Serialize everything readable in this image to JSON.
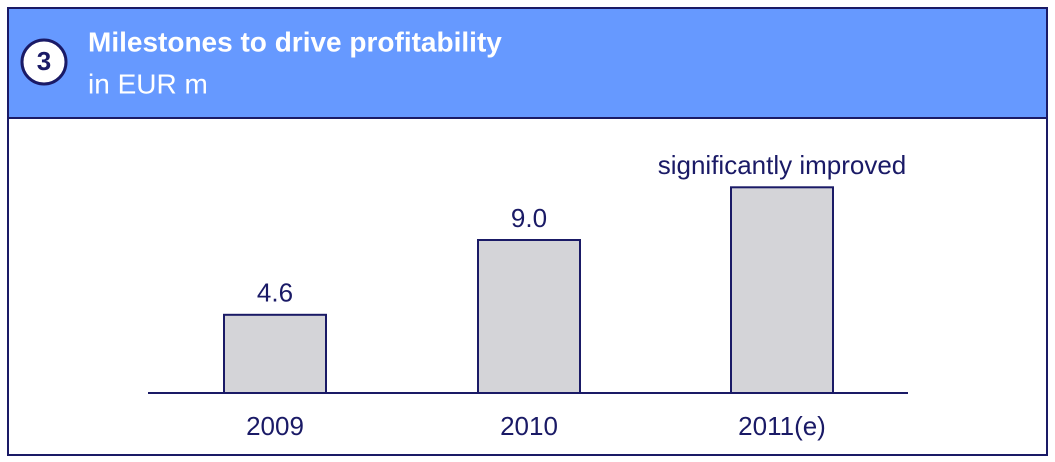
{
  "chart_data": {
    "type": "bar",
    "title": "Milestones to drive profitability",
    "subtitle": "in EUR m",
    "badge": "3",
    "categories": [
      "2009",
      "2010",
      "2011(e)"
    ],
    "values": [
      4.6,
      9,
      12.1
    ],
    "value_labels": [
      "4.6",
      "9.0",
      "significantly improved"
    ],
    "color": "#d4d4d8",
    "header_color": "#6699ff"
  }
}
